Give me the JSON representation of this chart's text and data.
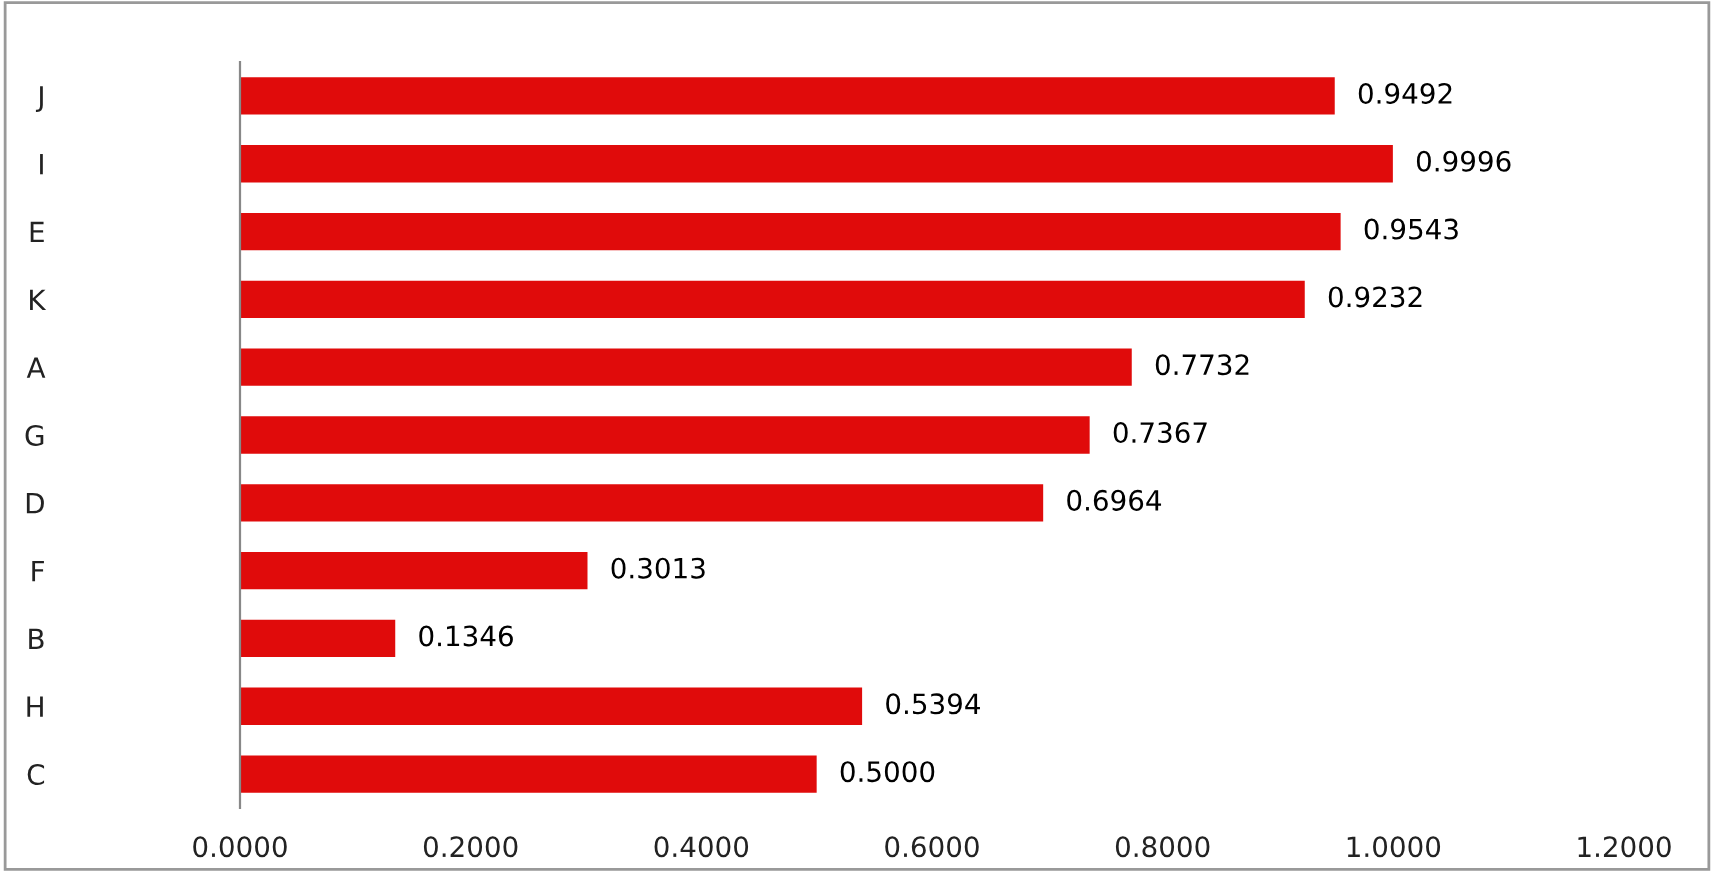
{
  "chart_data": {
    "type": "bar",
    "orientation": "horizontal",
    "categories": [
      "J",
      "I",
      "E",
      "K",
      "A",
      "G",
      "D",
      "F",
      "B",
      "H",
      "C"
    ],
    "values": [
      0.9492,
      0.9996,
      0.9543,
      0.9232,
      0.7732,
      0.7367,
      0.6964,
      0.3013,
      0.1346,
      0.5394,
      0.5
    ],
    "value_labels": [
      "0.9492",
      "0.9996",
      "0.9543",
      "0.9232",
      "0.7732",
      "0.7367",
      "0.6964",
      "0.3013",
      "0.1346",
      "0.5394",
      "0.5000"
    ],
    "color": "#e00b0b",
    "xlim": [
      0,
      1.2
    ],
    "xticks": [
      {
        "value": 0,
        "label": "0.0000"
      },
      {
        "value": 0.2,
        "label": "0.2000"
      },
      {
        "value": 0.4,
        "label": "0.4000"
      },
      {
        "value": 0.6,
        "label": "0.6000"
      },
      {
        "value": 0.8,
        "label": "0.8000"
      },
      {
        "value": 1.0,
        "label": "1.0000"
      },
      {
        "value": 1.2,
        "label": "1.2000"
      }
    ],
    "grid": false,
    "legend": false
  }
}
